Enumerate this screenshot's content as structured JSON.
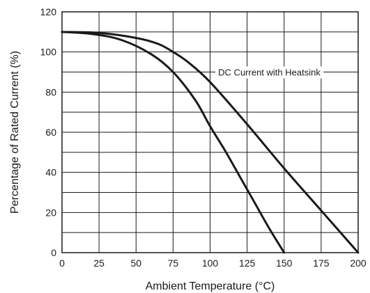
{
  "chart_data": {
    "type": "line",
    "xlabel": "Ambient Temperature (°C)",
    "ylabel": "Percentage of Rated Current (%)",
    "xlim": [
      0,
      200
    ],
    "ylim": [
      0,
      120
    ],
    "x_ticks": [
      0,
      25,
      50,
      75,
      100,
      125,
      150,
      175,
      200
    ],
    "y_ticks": [
      0,
      20,
      40,
      60,
      80,
      100,
      120
    ],
    "x_tick_labels": [
      "0",
      "25",
      "50",
      "75",
      "100",
      "125",
      "150",
      "175",
      "200"
    ],
    "y_tick_labels": [
      "0",
      "20",
      "40",
      "60",
      "80",
      "100",
      "120"
    ],
    "grid": true,
    "line_color": "#1a1a1a",
    "series": [
      {
        "name": "",
        "x": [
          0,
          20,
          40,
          60,
          75,
          90,
          100,
          110,
          120,
          130,
          140,
          150
        ],
        "y": [
          110,
          109,
          106,
          99,
          90,
          76,
          63,
          51,
          38,
          25,
          12,
          0
        ]
      },
      {
        "name": "DC Current with Heatsink",
        "x": [
          0,
          25,
          50,
          65,
          75,
          85,
          100,
          125,
          150,
          175,
          200
        ],
        "y": [
          110,
          109.5,
          107,
          104,
          100,
          95,
          85,
          64,
          42,
          21,
          0
        ]
      }
    ],
    "annotations": [
      {
        "text": "DC Current with Heatsink",
        "x": 140,
        "y": 90
      }
    ]
  }
}
